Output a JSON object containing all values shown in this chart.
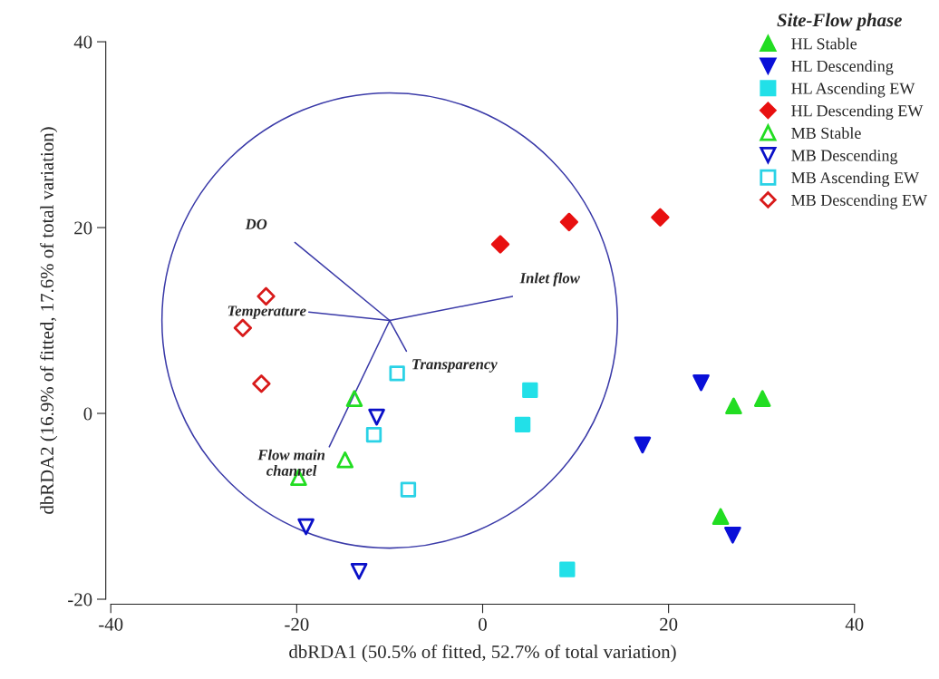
{
  "chart_data": {
    "type": "scatter",
    "xlabel": "dbRDA1 (50.5% of fitted, 52.7% of total variation)",
    "ylabel": "dbRDA2 (16.9% of fitted, 17.6% of total variation)",
    "legend_title": "Site-Flow phase",
    "legend": "top right",
    "grid": false,
    "xlim": [
      -40,
      40
    ],
    "xticks": [
      -40,
      -20,
      0,
      20,
      40
    ],
    "ylim": [
      -20,
      40
    ],
    "yticks": [
      -20,
      0,
      20,
      40
    ],
    "series": [
      {
        "name": "HL Stable",
        "marker": "triangle",
        "color": "#22dd22",
        "x": [
          27.0,
          30.1,
          25.6
        ],
        "values": [
          0.8,
          1.6,
          -11.1
        ]
      },
      {
        "name": "HL Descending",
        "marker": "triangle_down",
        "color": "#0a10d8",
        "x": [
          23.5,
          17.2,
          26.9
        ],
        "values": [
          3.3,
          -3.4,
          -13.1
        ]
      },
      {
        "name": "HL Ascending EW",
        "marker": "square",
        "color": "#22e0e8",
        "x": [
          5.1,
          4.3,
          9.1
        ],
        "values": [
          2.5,
          -1.2,
          -16.8
        ]
      },
      {
        "name": "HL Descending EW",
        "marker": "diamond",
        "color": "#e81010",
        "x": [
          1.9,
          9.3,
          19.1
        ],
        "values": [
          18.2,
          20.6,
          21.1
        ]
      },
      {
        "name": "MB Stable",
        "marker": "triangle_open",
        "color": "#22dd22",
        "x": [
          -13.8,
          -14.8,
          -19.8
        ],
        "values": [
          1.6,
          -5.0,
          -6.9
        ]
      },
      {
        "name": "MB Descending",
        "marker": "triangle_down_open",
        "color": "#0a10c8",
        "x": [
          -11.4,
          -19.0,
          -13.3
        ],
        "values": [
          -0.4,
          -12.2,
          -17.0
        ]
      },
      {
        "name": "MB Ascending EW",
        "marker": "square_open",
        "color": "#2ad2e6",
        "x": [
          -9.2,
          -11.7,
          -8.0
        ],
        "values": [
          4.3,
          -2.3,
          -8.2
        ]
      },
      {
        "name": "MB Descending EW",
        "marker": "diamond_open",
        "color": "#d81a1a",
        "x": [
          -23.3,
          -25.8,
          -23.8
        ],
        "values": [
          12.6,
          9.2,
          3.2
        ]
      },
      {
        "type": "line",
        "color": "#3a3aa8",
        "x": [
          -10.0,
          -20.2
        ],
        "values": [
          10.0,
          18.4
        ]
      },
      {
        "type": "line",
        "color": "#3a3aa8",
        "x": [
          -10.0,
          3.2
        ],
        "values": [
          10.0,
          12.6
        ]
      },
      {
        "type": "line",
        "color": "#3a3aa8",
        "x": [
          -10.0,
          -18.7
        ],
        "values": [
          10.0,
          10.9
        ]
      },
      {
        "type": "line",
        "color": "#3a3aa8",
        "x": [
          -10.0,
          -8.2
        ],
        "values": [
          10.0,
          6.7
        ]
      },
      {
        "type": "line",
        "color": "#3a3aa8",
        "x": [
          -10.0,
          -16.5
        ],
        "values": [
          10.0,
          -3.6
        ]
      }
    ],
    "annotations": [
      {
        "text": "DO",
        "x": -20.2,
        "y": 18.4
      },
      {
        "text": "Inlet flow",
        "x": 3.2,
        "y": 12.6
      },
      {
        "text": "Temperature",
        "x": -18.7,
        "y": 10.9
      },
      {
        "text": "Transparency",
        "x": -8.2,
        "y": 6.7
      },
      {
        "text": "Flow main\nchannel",
        "x": -16.5,
        "y": -3.6
      }
    ]
  }
}
